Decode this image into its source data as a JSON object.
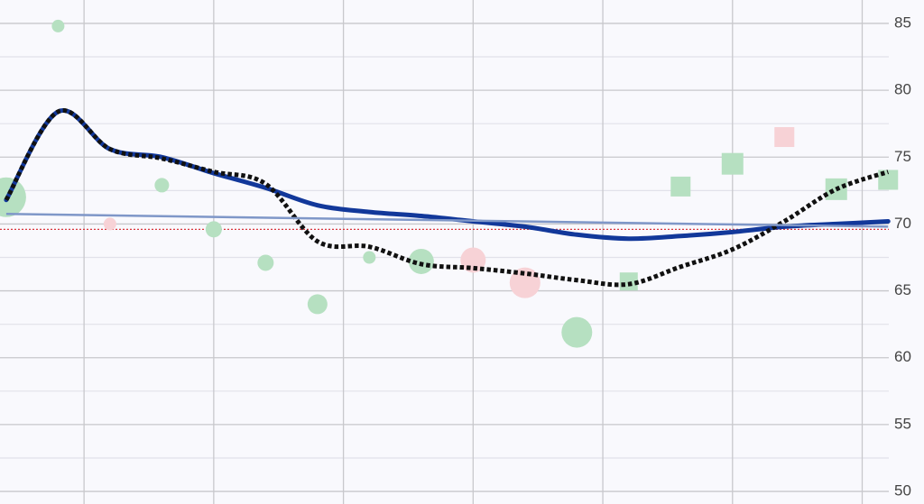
{
  "chart_data": {
    "type": "combo",
    "x": [
      0,
      1,
      2,
      3,
      4,
      5,
      6,
      7,
      8,
      9,
      10,
      11,
      12,
      13,
      14,
      15,
      16,
      17
    ],
    "xlim": [
      -0.12,
      17.1
    ],
    "xgrid": [
      1.5,
      4,
      6.5,
      9,
      11.5,
      14,
      16.5
    ],
    "ylim": [
      49.06,
      86.75
    ],
    "yticks": [
      50,
      55,
      60,
      65,
      70,
      75,
      80,
      85
    ],
    "grid": true,
    "minor_grid": true,
    "axis_side": "right",
    "hline": {
      "value": 69.6,
      "color": "#d9363e"
    },
    "series": [
      {
        "type": "scatter",
        "values": [
          72.0,
          84.8,
          70.0,
          72.9,
          69.6,
          67.1,
          64.0,
          67.5,
          67.2,
          67.3,
          65.6,
          61.9,
          65.7,
          72.8,
          74.5,
          76.5,
          72.6,
          73.3
        ],
        "sizes": [
          22,
          7,
          7,
          8,
          9,
          9,
          11,
          7,
          14,
          14,
          17,
          17,
          10,
          11,
          12,
          11,
          12,
          11
        ],
        "colors": [
          "#b6e0c1",
          "#b6e0c1",
          "#f7d2d6",
          "#b6e0c1",
          "#b6e0c1",
          "#b6e0c1",
          "#b6e0c1",
          "#b6e0c1",
          "#b6e0c1",
          "#f7d2d6",
          "#f7d2d6",
          "#b6e0c1",
          "#b6e0c1",
          "#b6e0c1",
          "#b6e0c1",
          "#f7d2d6",
          "#b6e0c1",
          "#b6e0c1"
        ],
        "markers": [
          "circle",
          "circle",
          "circle",
          "circle",
          "circle",
          "circle",
          "circle",
          "circle",
          "circle",
          "circle",
          "circle",
          "circle",
          "square",
          "square",
          "square",
          "square",
          "square",
          "square"
        ]
      },
      {
        "type": "line",
        "color": "#12389a",
        "style": "solid",
        "values": [
          71.8,
          78.4,
          75.6,
          75.0,
          73.8,
          72.7,
          71.4,
          70.9,
          70.6,
          70.2,
          69.8,
          69.2,
          68.9,
          69.1,
          69.4,
          69.8,
          70.0,
          70.2
        ]
      },
      {
        "type": "line",
        "color": "#111111",
        "style": "dotted",
        "values": [
          71.8,
          78.4,
          75.6,
          74.9,
          73.9,
          73.0,
          68.7,
          68.3,
          67.0,
          66.7,
          66.3,
          65.8,
          65.5,
          66.8,
          68.1,
          70.2,
          72.6,
          73.9
        ]
      },
      {
        "type": "trend",
        "color": "#7f97c8",
        "x": [
          0,
          17
        ],
        "values": [
          70.75,
          69.8
        ]
      }
    ]
  }
}
